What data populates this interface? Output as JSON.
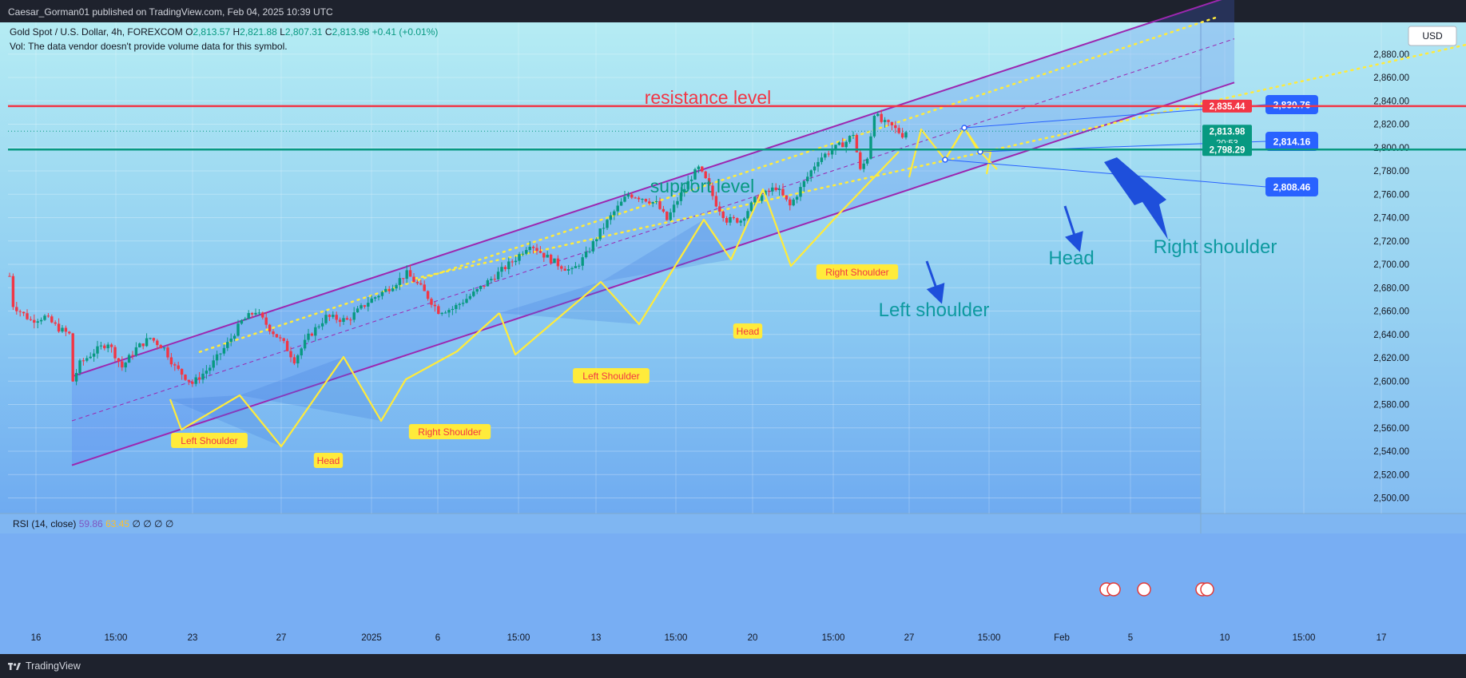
{
  "header": {
    "publisher": "Caesar_Gorman01 published on TradingView.com, Feb 04, 2025 10:39 UTC"
  },
  "legend": {
    "symbol": "Gold Spot / U.S. Dollar, 4h, FOREXCOM",
    "o_label": "O",
    "o": "2,813.57",
    "h_label": "H",
    "h": "2,821.88",
    "l_label": "L",
    "l": "2,807.31",
    "c_label": "C",
    "c": "2,813.98",
    "change": "+0.41 (+0.01%)",
    "vol_note": "Vol: The data vendor doesn't provide volume data for this symbol."
  },
  "currency": "USD",
  "rsi": {
    "label": "RSI (14, close)",
    "value1": "59.86",
    "value2": "63.45",
    "empty": "∅ ∅ ∅ ∅"
  },
  "footer": {
    "brand": "TradingView"
  },
  "colors": {
    "resistance": "#f23645",
    "support": "#089981",
    "channel": "#9c27b0",
    "pattern": "#ffeb3b",
    "up_candle": "#089981",
    "down_candle": "#f23645",
    "forecast_label": "#2962ff",
    "arrow": "#1e4fdb"
  },
  "chart_data": {
    "type": "candlestick",
    "ylim": [
      2490,
      2900
    ],
    "y_ticks": [
      "2,880.00",
      "2,860.00",
      "2,840.00",
      "2,820.00",
      "2,800.00",
      "2,780.00",
      "2,760.00",
      "2,740.00",
      "2,720.00",
      "2,700.00",
      "2,680.00",
      "2,660.00",
      "2,640.00",
      "2,620.00",
      "2,600.00",
      "2,580.00",
      "2,560.00",
      "2,540.00",
      "2,520.00",
      "2,500.00"
    ],
    "x_ticks": [
      "16",
      "15:00",
      "23",
      "27",
      "2025",
      "6",
      "15:00",
      "13",
      "15:00",
      "20",
      "15:00",
      "27",
      "15:00",
      "Feb",
      "5",
      "10",
      "15:00",
      "17"
    ],
    "resistance": {
      "label": "resistance level",
      "price": 2835.44,
      "price_label": "2,835.44"
    },
    "support": {
      "label": "support level",
      "price": 2798.29,
      "price_label": "2,798.29"
    },
    "last_price": {
      "price": 2813.98,
      "price_label": "2,813.98",
      "countdown": "20:53"
    },
    "forecast_labels": [
      "2,830.76",
      "2,814.16",
      "2,808.46"
    ],
    "forecast_points": [
      2830.76,
      2814.16,
      2808.46
    ],
    "pattern_labels": [
      "Left Shoulder",
      "Head",
      "Right Shoulder",
      "Left Shoulder",
      "Head",
      "Right Shoulder"
    ],
    "big_labels": [
      "Left shoulder",
      "Head",
      "Right shoulder"
    ],
    "anchors": [
      [
        0,
        2690
      ],
      [
        1,
        2665
      ],
      [
        6,
        2652
      ],
      [
        10,
        2655
      ],
      [
        14,
        2645
      ],
      [
        17,
        2640
      ],
      [
        18,
        2600
      ],
      [
        20,
        2615
      ],
      [
        24,
        2625
      ],
      [
        28,
        2633
      ],
      [
        32,
        2612
      ],
      [
        36,
        2628
      ],
      [
        40,
        2637
      ],
      [
        44,
        2628
      ],
      [
        47,
        2612
      ],
      [
        52,
        2598
      ],
      [
        57,
        2612
      ],
      [
        62,
        2632
      ],
      [
        66,
        2651
      ],
      [
        70,
        2660
      ],
      [
        74,
        2645
      ],
      [
        78,
        2632
      ],
      [
        81,
        2618
      ],
      [
        85,
        2638
      ],
      [
        90,
        2655
      ],
      [
        96,
        2652
      ],
      [
        102,
        2668
      ],
      [
        108,
        2680
      ],
      [
        113,
        2692
      ],
      [
        117,
        2680
      ],
      [
        122,
        2660
      ],
      [
        126,
        2662
      ],
      [
        132,
        2675
      ],
      [
        138,
        2690
      ],
      [
        144,
        2705
      ],
      [
        148,
        2718
      ],
      [
        152,
        2708
      ],
      [
        156,
        2700
      ],
      [
        160,
        2694
      ],
      [
        164,
        2708
      ],
      [
        168,
        2728
      ],
      [
        172,
        2745
      ],
      [
        176,
        2760
      ],
      [
        180,
        2757
      ],
      [
        184,
        2752
      ],
      [
        187,
        2738
      ],
      [
        190,
        2755
      ],
      [
        194,
        2775
      ],
      [
        196,
        2782
      ],
      [
        198,
        2772
      ],
      [
        201,
        2752
      ],
      [
        204,
        2738
      ],
      [
        208,
        2738
      ],
      [
        212,
        2755
      ],
      [
        218,
        2766
      ],
      [
        222,
        2750
      ],
      [
        226,
        2770
      ],
      [
        230,
        2790
      ],
      [
        234,
        2798
      ],
      [
        238,
        2805
      ],
      [
        240,
        2812
      ],
      [
        242,
        2780
      ],
      [
        244,
        2792
      ],
      [
        246,
        2830
      ],
      [
        248,
        2822
      ],
      [
        251,
        2818
      ],
      [
        254,
        2811
      ],
      [
        255,
        2813.98
      ]
    ],
    "channel": {
      "lower": [
        [
          90,
          2528
        ],
        [
          1320,
          2805
        ]
      ],
      "upper": [
        [
          90,
          2604
        ],
        [
          1320,
          2880
        ]
      ]
    }
  }
}
